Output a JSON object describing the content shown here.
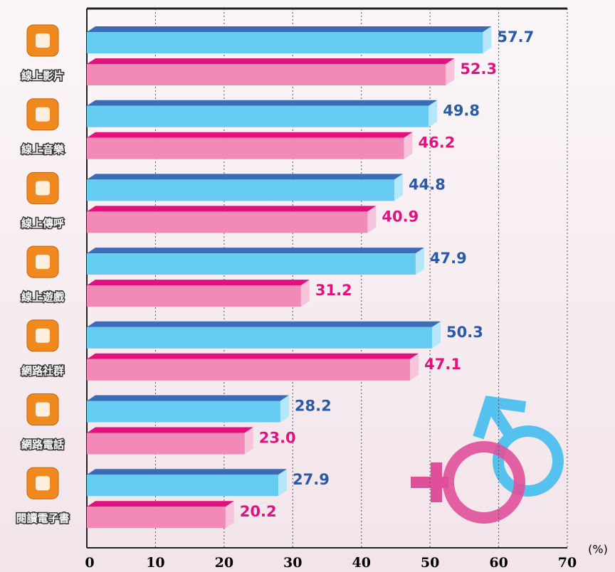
{
  "chart_data": {
    "type": "bar",
    "orientation": "horizontal",
    "categories": [
      "線上影片",
      "線上音樂",
      "線上傳呼",
      "線上遊戲",
      "網路社群",
      "網路電話",
      "閱讀電子書"
    ],
    "series": [
      {
        "color": "#66ccf2",
        "values": [
          57.7,
          49.8,
          44.8,
          47.9,
          50.3,
          28.2,
          27.9
        ],
        "value_labels": [
          "57.7",
          "49.8",
          "44.8",
          "47.9",
          "50.3",
          "28.2",
          "27.9"
        ]
      },
      {
        "color": "#f28ab8",
        "values": [
          52.3,
          46.2,
          40.9,
          31.2,
          47.1,
          23.0,
          20.2
        ],
        "value_labels": [
          "52.3",
          "46.2",
          "40.9",
          "31.2",
          "47.1",
          "23.0",
          "20.2"
        ]
      }
    ],
    "xlim": [
      0,
      70
    ],
    "xticks": [
      0,
      10,
      20,
      30,
      40,
      50,
      60,
      70
    ],
    "x_unit": "(%)",
    "grid": true
  }
}
